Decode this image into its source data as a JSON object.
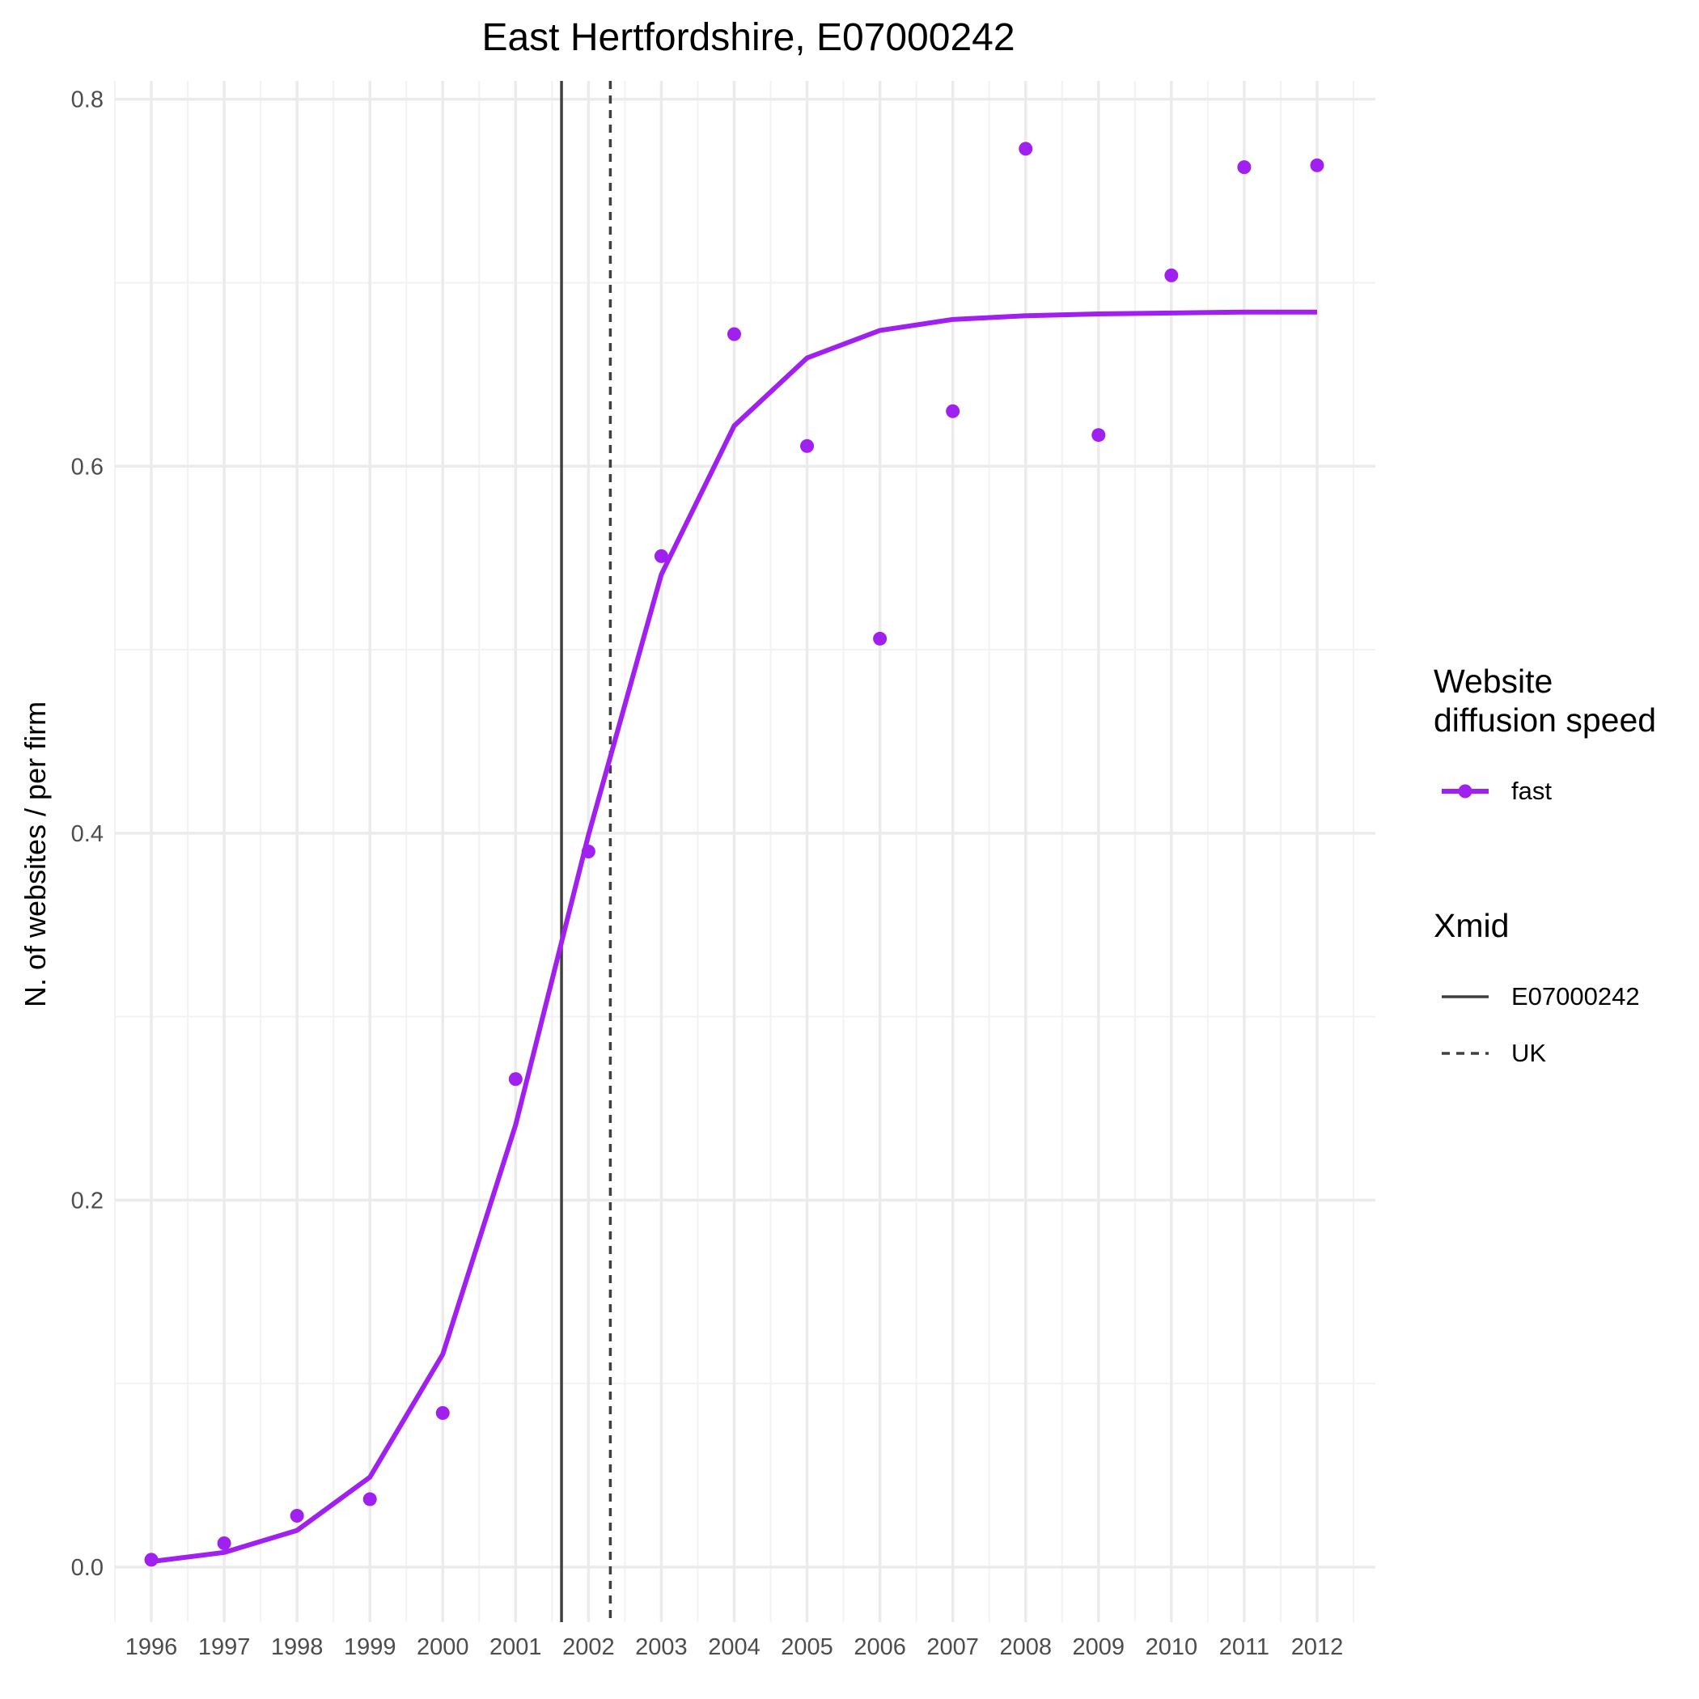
{
  "chart_data": {
    "type": "line",
    "title": "East Hertfordshire, E07000242",
    "xlabel": "",
    "ylabel": "N. of websites / per firm",
    "x": [
      1996,
      1997,
      1998,
      1999,
      2000,
      2001,
      2002,
      2003,
      2004,
      2005,
      2006,
      2007,
      2008,
      2009,
      2010,
      2011,
      2012
    ],
    "x_tick_labels": [
      "1996",
      "1997",
      "1998",
      "1999",
      "2000",
      "2001",
      "2002",
      "2003",
      "2004",
      "2005",
      "2006",
      "2007",
      "2008",
      "2009",
      "2010",
      "2011",
      "2012"
    ],
    "y_ticks": [
      0.0,
      0.2,
      0.4,
      0.6,
      0.8
    ],
    "y_tick_labels": [
      "0.0",
      "0.2",
      "0.4",
      "0.6",
      "0.8"
    ],
    "xlim": [
      1995.5,
      2012.8
    ],
    "ylim": [
      -0.03,
      0.81
    ],
    "grid": true,
    "series": [
      {
        "name": "fast",
        "color": "#a020f0",
        "points": [
          0.004,
          0.013,
          0.028,
          0.037,
          0.084,
          0.266,
          0.39,
          0.551,
          0.672,
          0.611,
          0.506,
          0.63,
          0.773,
          0.617,
          0.704,
          0.763,
          0.764
        ],
        "fitted": [
          0.003,
          0.008,
          0.02,
          0.049,
          0.116,
          0.241,
          0.399,
          0.541,
          0.622,
          0.659,
          0.674,
          0.68,
          0.682,
          0.683,
          0.6835,
          0.684,
          0.684
        ]
      }
    ],
    "vlines": [
      {
        "name": "E07000242",
        "x": 2001.63,
        "style": "solid",
        "color": "#404040"
      },
      {
        "name": "UK",
        "x": 2002.3,
        "style": "dashed",
        "color": "#404040"
      }
    ],
    "legend": {
      "position": "right",
      "groups": [
        {
          "title_lines": [
            "Website",
            "diffusion speed"
          ],
          "items": [
            {
              "label": "fast",
              "kind": "line-point",
              "color": "#a020f0"
            }
          ]
        },
        {
          "title_lines": [
            "Xmid"
          ],
          "items": [
            {
              "label": "E07000242",
              "kind": "solid"
            },
            {
              "label": "UK",
              "kind": "dashed"
            }
          ]
        }
      ]
    }
  }
}
